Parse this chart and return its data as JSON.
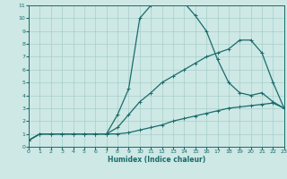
{
  "xlabel": "Humidex (Indice chaleur)",
  "xlim": [
    0,
    23
  ],
  "ylim": [
    0,
    11
  ],
  "xticks": [
    0,
    1,
    2,
    3,
    4,
    5,
    6,
    7,
    8,
    9,
    10,
    11,
    12,
    13,
    14,
    15,
    16,
    17,
    18,
    19,
    20,
    21,
    22,
    23
  ],
  "yticks": [
    0,
    1,
    2,
    3,
    4,
    5,
    6,
    7,
    8,
    9,
    10,
    11
  ],
  "bg_color": "#cde8e5",
  "line_color": "#1a6b6b",
  "line1_x": [
    0,
    1,
    2,
    3,
    4,
    5,
    6,
    7,
    8,
    9,
    10,
    11,
    12,
    13,
    14,
    15,
    16,
    17,
    18,
    19,
    20,
    21,
    22,
    23
  ],
  "line1_y": [
    0.5,
    1.0,
    1.0,
    1.0,
    1.0,
    1.0,
    1.0,
    1.0,
    1.0,
    1.1,
    1.3,
    1.5,
    1.7,
    2.0,
    2.2,
    2.4,
    2.6,
    2.8,
    3.0,
    3.1,
    3.2,
    3.3,
    3.4,
    3.0
  ],
  "line2_x": [
    0,
    1,
    2,
    3,
    4,
    5,
    6,
    7,
    8,
    9,
    10,
    11,
    12,
    13,
    14,
    15,
    16,
    17,
    18,
    19,
    20,
    21,
    22,
    23
  ],
  "line2_y": [
    0.5,
    1.0,
    1.0,
    1.0,
    1.0,
    1.0,
    1.0,
    1.0,
    1.5,
    2.5,
    3.5,
    4.2,
    5.0,
    5.5,
    6.0,
    6.5,
    7.0,
    7.3,
    7.6,
    8.3,
    8.3,
    7.3,
    5.0,
    3.0
  ],
  "line3_x": [
    0,
    1,
    2,
    3,
    4,
    5,
    6,
    7,
    8,
    9,
    10,
    11,
    12,
    13,
    14,
    15,
    16,
    17,
    18,
    19,
    20,
    21,
    22,
    23
  ],
  "line3_y": [
    0.5,
    1.0,
    1.0,
    1.0,
    1.0,
    1.0,
    1.0,
    1.0,
    2.5,
    4.5,
    10.0,
    11.0,
    11.2,
    11.2,
    11.2,
    10.2,
    9.0,
    6.8,
    5.0,
    4.2,
    4.0,
    4.2,
    3.5,
    3.0
  ]
}
